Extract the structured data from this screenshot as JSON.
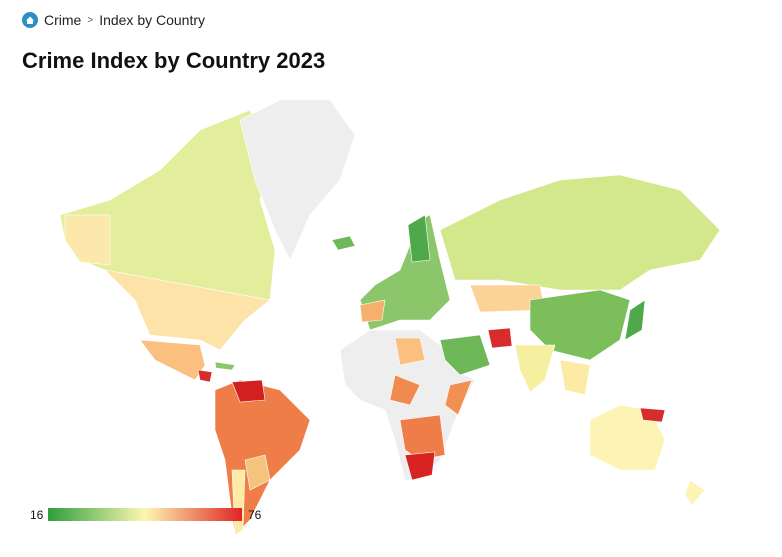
{
  "breadcrumb": {
    "items": [
      "Crime",
      "Index by Country"
    ]
  },
  "title": "Crime Index by Country 2023",
  "legend": {
    "min": 16,
    "max": 76,
    "colors": [
      "#2e9e3e",
      "#fdf7b0",
      "#e02424"
    ]
  }
}
